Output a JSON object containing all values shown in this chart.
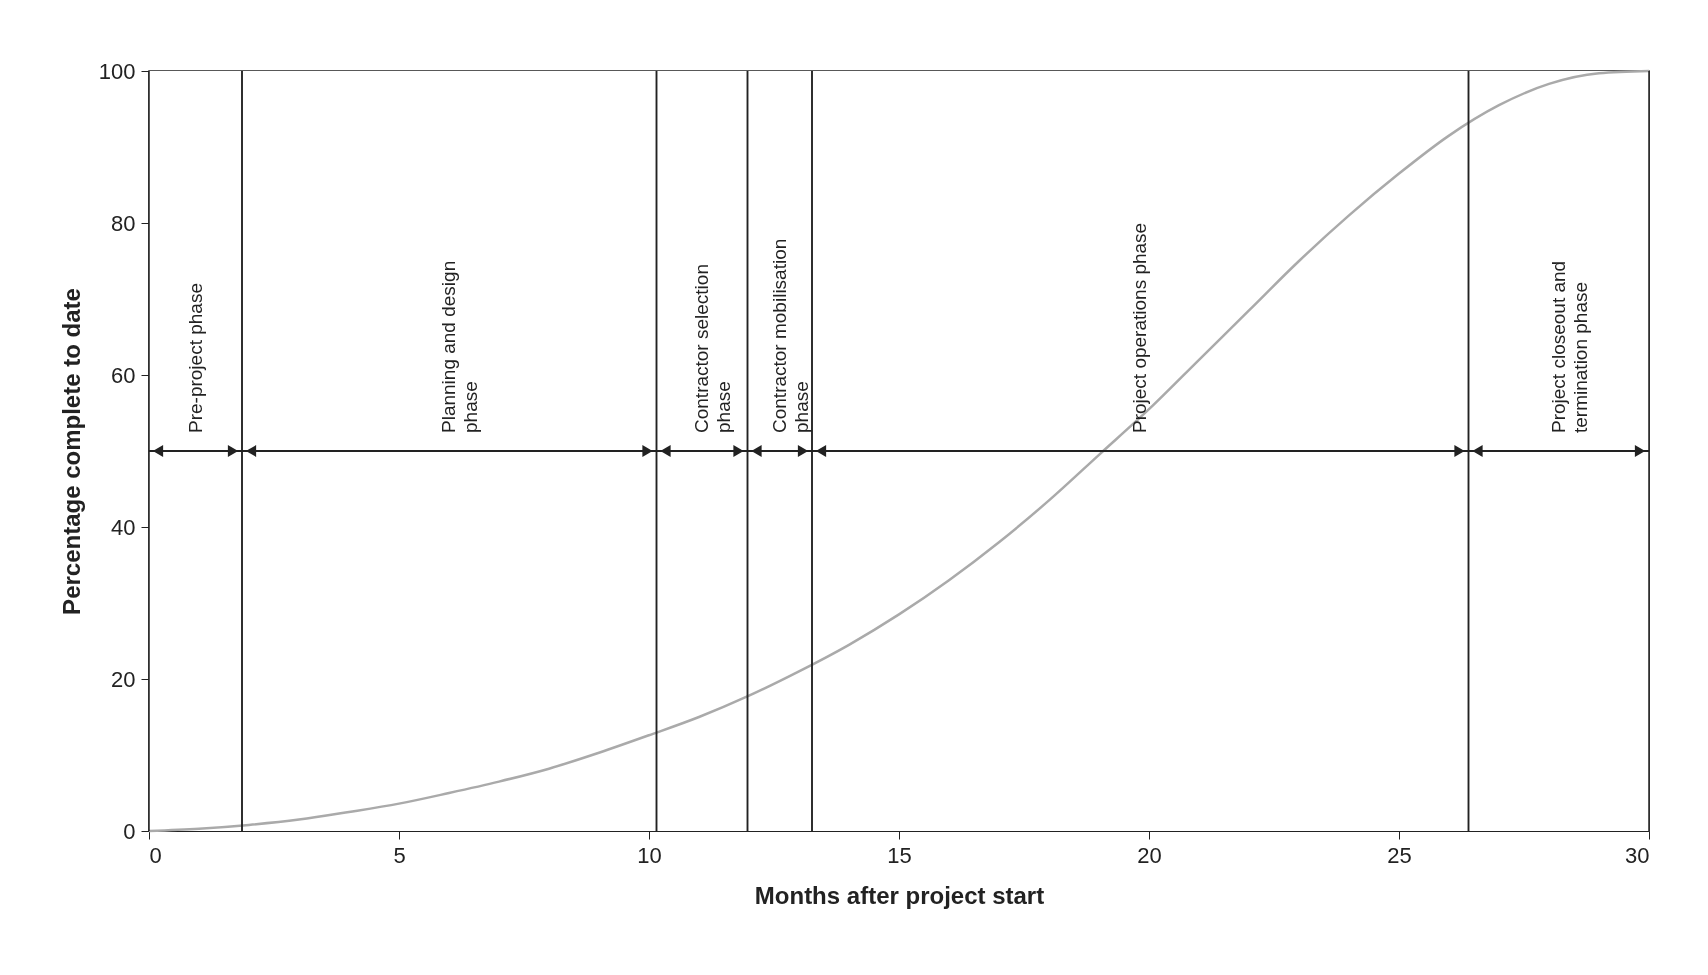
{
  "chart_data": {
    "type": "line",
    "xlabel": "Months after project start",
    "ylabel": "Percentage complete to date",
    "x": [
      0,
      1,
      2,
      3,
      4,
      5,
      6,
      7,
      8,
      9,
      10,
      11,
      12,
      13,
      14,
      15,
      16,
      17,
      18,
      19,
      20,
      21,
      22,
      23,
      24,
      25,
      26,
      27,
      28,
      29,
      30
    ],
    "series": [
      {
        "color": "#aaaaaa",
        "values": [
          0,
          0.3,
          0.8,
          1.5,
          2.5,
          3.6,
          5,
          6.5,
          8.2,
          10.3,
          12.6,
          15,
          17.8,
          21,
          24.5,
          28.5,
          33,
          38,
          43.5,
          49.5,
          55.5,
          62,
          68.5,
          75,
          81,
          86.5,
          91.5,
          95.5,
          98.3,
          99.7,
          100
        ]
      }
    ],
    "xlim": [
      0,
      30
    ],
    "xticks": [
      0,
      5,
      10,
      15,
      20,
      25,
      30
    ],
    "ylim": [
      0,
      100
    ],
    "yticks": [
      0,
      20,
      40,
      60,
      80,
      100
    ],
    "grid": false,
    "marker": "none",
    "line_style": "solid",
    "bands": [
      {
        "axis": "x",
        "from": 0,
        "to": 1.86,
        "label": "Pre-project phase"
      },
      {
        "axis": "x",
        "from": 1.86,
        "to": 10.15,
        "label": "Planning and design phase"
      },
      {
        "axis": "x",
        "from": 10.15,
        "to": 11.97,
        "label": "Contractor selection phase"
      },
      {
        "axis": "x",
        "from": 11.97,
        "to": 13.26,
        "label": "Contractor mobilisation phase"
      },
      {
        "axis": "x",
        "from": 13.26,
        "to": 26.39,
        "label": "Project operations phase"
      },
      {
        "axis": "x",
        "from": 26.39,
        "to": 30,
        "label": "Project closeout and termination phase"
      }
    ]
  }
}
